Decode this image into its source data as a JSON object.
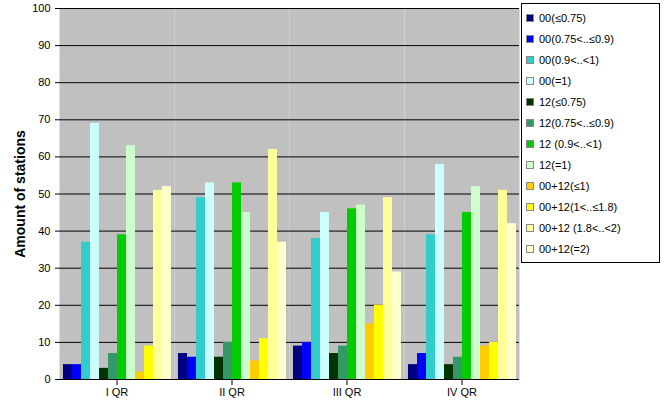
{
  "chart_data": {
    "type": "bar",
    "y_label": "Amount of stations",
    "categories": [
      "I QR",
      "II QR",
      "III QR",
      "IV QR"
    ],
    "series": [
      {
        "name": "00(≤0.75)",
        "color": "#000080",
        "values": [
          4,
          7,
          9,
          4
        ]
      },
      {
        "name": "00(0.75<..≤0.9)",
        "color": "#0000ff",
        "values": [
          4,
          6,
          10,
          7
        ]
      },
      {
        "name": "00(0.9<..<1)",
        "color": "#33cccc",
        "values": [
          37,
          49,
          38,
          39
        ]
      },
      {
        "name": "00(=1)",
        "color": "#ccffff",
        "values": [
          69,
          53,
          45,
          58
        ]
      },
      {
        "name": "12(≤0.75)",
        "color": "#003300",
        "values": [
          3,
          6,
          7,
          4
        ]
      },
      {
        "name": "12(0.75<..≤0.9)",
        "color": "#339966",
        "values": [
          7,
          10,
          9,
          6
        ]
      },
      {
        "name": "12 (0.9<..<1)",
        "color": "#00cc00",
        "values": [
          39,
          53,
          46,
          45
        ]
      },
      {
        "name": "12(=1)",
        "color": "#ccffcc",
        "values": [
          63,
          45,
          47,
          52
        ]
      },
      {
        "name": "00+12(≤1)",
        "color": "#ffcc00",
        "values": [
          2,
          5,
          15,
          9
        ]
      },
      {
        "name": "00+12(1<..≤1.8)",
        "color": "#ffff00",
        "values": [
          9,
          11,
          20,
          10
        ]
      },
      {
        "name": "00+12 (1.8<..<2)",
        "color": "#ffff99",
        "values": [
          51,
          62,
          49,
          51
        ]
      },
      {
        "name": "00+12(=2)",
        "color": "#ffffcc",
        "values": [
          52,
          37,
          29,
          42
        ]
      }
    ],
    "ylim": [
      0,
      100
    ],
    "yticks": [
      0,
      10,
      20,
      30,
      40,
      50,
      60,
      70,
      80,
      90,
      100
    ],
    "grid": true,
    "legend": "right"
  }
}
